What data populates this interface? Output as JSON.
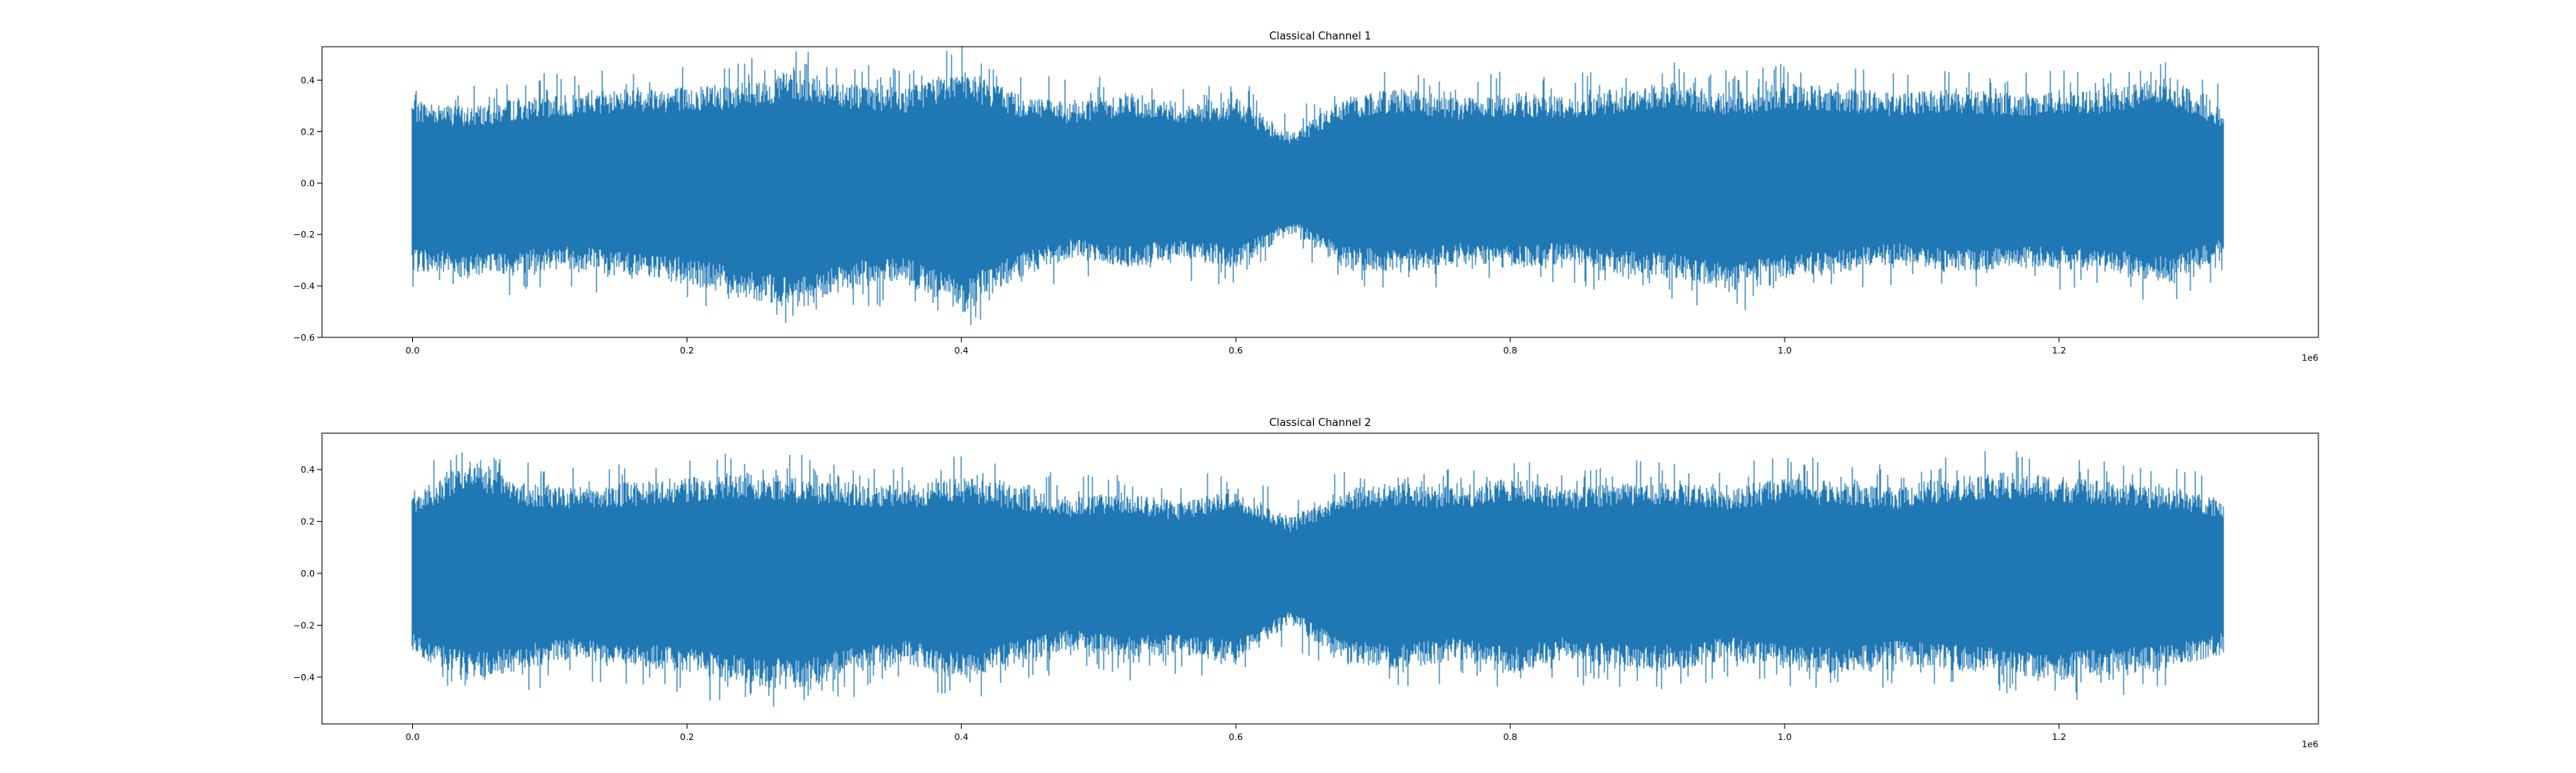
{
  "chart_data": [
    {
      "type": "line",
      "title": "Classical Channel 1",
      "xlabel": "",
      "ylabel": "",
      "x_offset_label": "1e6",
      "x_range": [
        0,
        1323000
      ],
      "xlim": [
        -0.066,
        1.389
      ],
      "ylim": [
        -0.6,
        0.53
      ],
      "x_ticks": [
        "0.0",
        "0.2",
        "0.4",
        "0.6",
        "0.8",
        "1.0",
        "1.2"
      ],
      "y_ticks": [
        "0.4",
        "0.2",
        "0.0",
        "−0.2",
        "−0.4",
        "−0.6"
      ],
      "grid": false,
      "legend": "none",
      "color": "#1f77b4",
      "series": [
        {
          "x_unit": "1e6 samples",
          "x": [
            0.0,
            0.04,
            0.08,
            0.12,
            0.16,
            0.2,
            0.24,
            0.28,
            0.32,
            0.36,
            0.4,
            0.44,
            0.48,
            0.52,
            0.56,
            0.6,
            0.64,
            0.68,
            0.72,
            0.76,
            0.8,
            0.84,
            0.88,
            0.92,
            0.96,
            1.0,
            1.04,
            1.08,
            1.12,
            1.16,
            1.2,
            1.24,
            1.28,
            1.32
          ],
          "upper": [
            0.33,
            0.3,
            0.34,
            0.36,
            0.38,
            0.38,
            0.4,
            0.45,
            0.4,
            0.38,
            0.46,
            0.36,
            0.32,
            0.36,
            0.32,
            0.34,
            0.2,
            0.34,
            0.38,
            0.34,
            0.36,
            0.34,
            0.38,
            0.4,
            0.36,
            0.4,
            0.38,
            0.36,
            0.38,
            0.36,
            0.36,
            0.38,
            0.42,
            0.3
          ],
          "lower": [
            -0.35,
            -0.38,
            -0.36,
            -0.34,
            -0.38,
            -0.4,
            -0.46,
            -0.5,
            -0.42,
            -0.4,
            -0.52,
            -0.38,
            -0.3,
            -0.34,
            -0.3,
            -0.34,
            -0.2,
            -0.34,
            -0.36,
            -0.32,
            -0.34,
            -0.32,
            -0.36,
            -0.38,
            -0.44,
            -0.38,
            -0.36,
            -0.32,
            -0.36,
            -0.34,
            -0.34,
            -0.36,
            -0.4,
            -0.3
          ]
        }
      ]
    },
    {
      "type": "line",
      "title": "Classical Channel 2",
      "xlabel": "",
      "ylabel": "",
      "x_offset_label": "1e6",
      "x_range": [
        0,
        1323000
      ],
      "xlim": [
        -0.066,
        1.389
      ],
      "ylim": [
        -0.58,
        0.54
      ],
      "x_ticks": [
        "0.0",
        "0.2",
        "0.4",
        "0.6",
        "0.8",
        "1.0",
        "1.2"
      ],
      "y_ticks": [
        "0.4",
        "0.2",
        "0.0",
        "−0.2",
        "−0.4"
      ],
      "grid": false,
      "legend": "none",
      "color": "#1f77b4",
      "series": [
        {
          "x_unit": "1e6 samples",
          "x": [
            0.0,
            0.04,
            0.08,
            0.12,
            0.16,
            0.2,
            0.24,
            0.28,
            0.32,
            0.36,
            0.4,
            0.44,
            0.48,
            0.52,
            0.56,
            0.6,
            0.64,
            0.68,
            0.72,
            0.76,
            0.8,
            0.84,
            0.88,
            0.92,
            0.96,
            1.0,
            1.04,
            1.08,
            1.12,
            1.16,
            1.2,
            1.24,
            1.28,
            1.32
          ],
          "upper": [
            0.3,
            0.46,
            0.36,
            0.34,
            0.36,
            0.38,
            0.4,
            0.38,
            0.36,
            0.34,
            0.38,
            0.34,
            0.3,
            0.32,
            0.28,
            0.34,
            0.22,
            0.34,
            0.36,
            0.34,
            0.38,
            0.34,
            0.36,
            0.36,
            0.34,
            0.38,
            0.36,
            0.34,
            0.38,
            0.4,
            0.38,
            0.36,
            0.34,
            0.3
          ],
          "lower": [
            -0.32,
            -0.42,
            -0.38,
            -0.34,
            -0.36,
            -0.4,
            -0.44,
            -0.46,
            -0.4,
            -0.36,
            -0.42,
            -0.36,
            -0.3,
            -0.34,
            -0.32,
            -0.36,
            -0.2,
            -0.36,
            -0.38,
            -0.34,
            -0.4,
            -0.34,
            -0.38,
            -0.38,
            -0.34,
            -0.38,
            -0.4,
            -0.36,
            -0.38,
            -0.4,
            -0.42,
            -0.4,
            -0.38,
            -0.32
          ]
        }
      ]
    }
  ]
}
